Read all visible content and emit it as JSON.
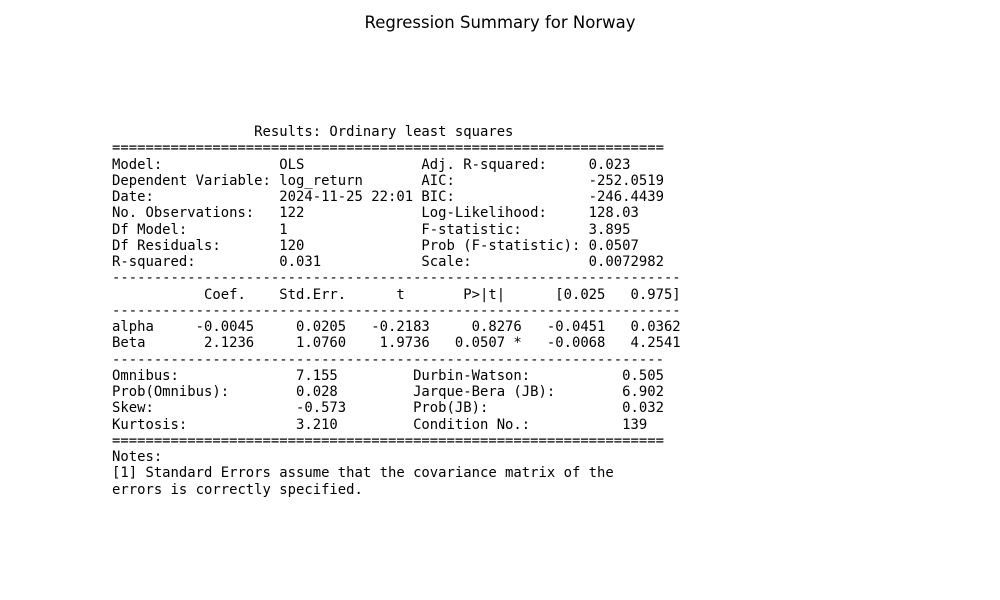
{
  "title": "Regression Summary for Norway",
  "summary_lines": [
    "                 Results: Ordinary least squares",
    "==================================================================",
    "Model:              OLS              Adj. R-squared:     0.023",
    "Dependent Variable: log_return       AIC:                -252.0519",
    "Date:               2024-11-25 22:01 BIC:                -246.4439",
    "No. Observations:   122              Log-Likelihood:     128.03",
    "Df Model:           1                F-statistic:        3.895",
    "Df Residuals:       120              Prob (F-statistic): 0.0507",
    "R-squared:          0.031            Scale:              0.0072982",
    "--------------------------------------------------------------------",
    "           Coef.    Std.Err.      t       P>|t|      [0.025   0.975]",
    "--------------------------------------------------------------------",
    "alpha     -0.0045     0.0205   -0.2183     0.8276   -0.0451   0.0362",
    "Beta       2.1236     1.0760    1.9736   0.0507 *   -0.0068   4.2541",
    "------------------------------------------------------------------",
    "Omnibus:              7.155         Durbin-Watson:           0.505",
    "Prob(Omnibus):        0.028         Jarque-Bera (JB):        6.902",
    "Skew:                 -0.573        Prob(JB):                0.032",
    "Kurtosis:             3.210         Condition No.:           139",
    "==================================================================",
    "Notes:",
    "[1] Standard Errors assume that the covariance matrix of the",
    "errors is correctly specified."
  ]
}
